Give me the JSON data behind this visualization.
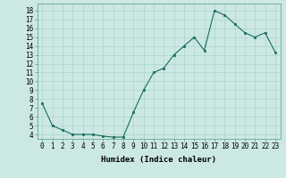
{
  "x": [
    0,
    1,
    2,
    3,
    4,
    5,
    6,
    7,
    8,
    9,
    10,
    11,
    12,
    13,
    14,
    15,
    16,
    17,
    18,
    19,
    20,
    21,
    22,
    23
  ],
  "y": [
    7.5,
    5.0,
    4.5,
    4.0,
    4.0,
    4.0,
    3.8,
    3.7,
    3.7,
    6.5,
    9.0,
    11.0,
    11.5,
    13.0,
    14.0,
    15.0,
    13.5,
    18.0,
    17.5,
    16.5,
    15.5,
    15.0,
    15.5,
    13.3
  ],
  "xlabel": "Humidex (Indice chaleur)",
  "bg_color": "#cce8e4",
  "line_color": "#1a6b5a",
  "marker_color": "#1a6b5a",
  "grid_color": "#aad4cc",
  "xlim": [
    -0.5,
    23.5
  ],
  "ylim": [
    3.5,
    18.8
  ],
  "yticks": [
    4,
    5,
    6,
    7,
    8,
    9,
    10,
    11,
    12,
    13,
    14,
    15,
    16,
    17,
    18
  ],
  "xticks": [
    0,
    1,
    2,
    3,
    4,
    5,
    6,
    7,
    8,
    9,
    10,
    11,
    12,
    13,
    14,
    15,
    16,
    17,
    18,
    19,
    20,
    21,
    22,
    23
  ],
  "xtick_labels": [
    "0",
    "1",
    "2",
    "3",
    "4",
    "5",
    "6",
    "7",
    "8",
    "9",
    "10",
    "11",
    "12",
    "13",
    "14",
    "15",
    "16",
    "17",
    "18",
    "19",
    "20",
    "21",
    "22",
    "23"
  ],
  "ytick_labels": [
    "4",
    "5",
    "6",
    "7",
    "8",
    "9",
    "10",
    "11",
    "12",
    "13",
    "14",
    "15",
    "16",
    "17",
    "18"
  ],
  "xlabel_fontsize": 6.5,
  "tick_fontsize": 5.5
}
